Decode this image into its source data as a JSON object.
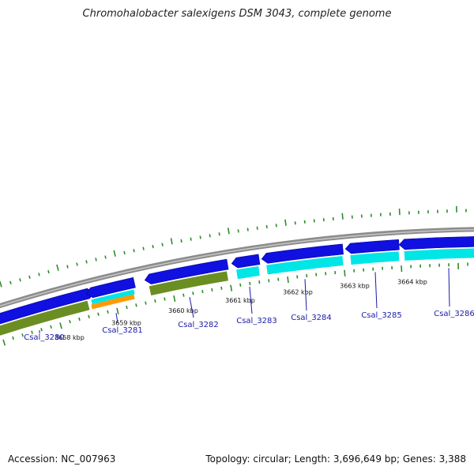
{
  "title": "Chromohalobacter salexigens DSM 3043, complete genome",
  "footer": {
    "accession": "Accession: NC_007963",
    "stats": "Topology: circular; Length: 3,696,649 bp; Genes: 3,388"
  },
  "colors": {
    "backbone": "#8c8c8c",
    "gene_forward": "#1010e0",
    "gene_reverse": "#1010e0",
    "cog_cyan": "#00e5e5",
    "cog_olive": "#6b8e23",
    "cog_orange": "#ff9a00",
    "tick": "#2e8b2e",
    "label": "#1a1aa8"
  },
  "scale": {
    "kbp_labels": [
      "3658 kbp",
      "3659 kbp",
      "3660 kbp",
      "3661 kbp",
      "3662 kbp",
      "3663 kbp",
      "3664 kbp"
    ]
  },
  "genes": [
    {
      "id": "Csal_3280",
      "strand": "+",
      "cog_color": "olive"
    },
    {
      "id": "Csal_3281",
      "strand": "-",
      "cog_color": "cyan+orange"
    },
    {
      "id": "Csal_3282",
      "strand": "-",
      "cog_color": "olive"
    },
    {
      "id": "Csal_3283",
      "strand": "-",
      "cog_color": "cyan"
    },
    {
      "id": "Csal_3284",
      "strand": "-",
      "cog_color": "cyan"
    },
    {
      "id": "Csal_3285",
      "strand": "-",
      "cog_color": "cyan"
    },
    {
      "id": "Csal_3286",
      "strand": "-",
      "cog_color": "cyan"
    }
  ]
}
